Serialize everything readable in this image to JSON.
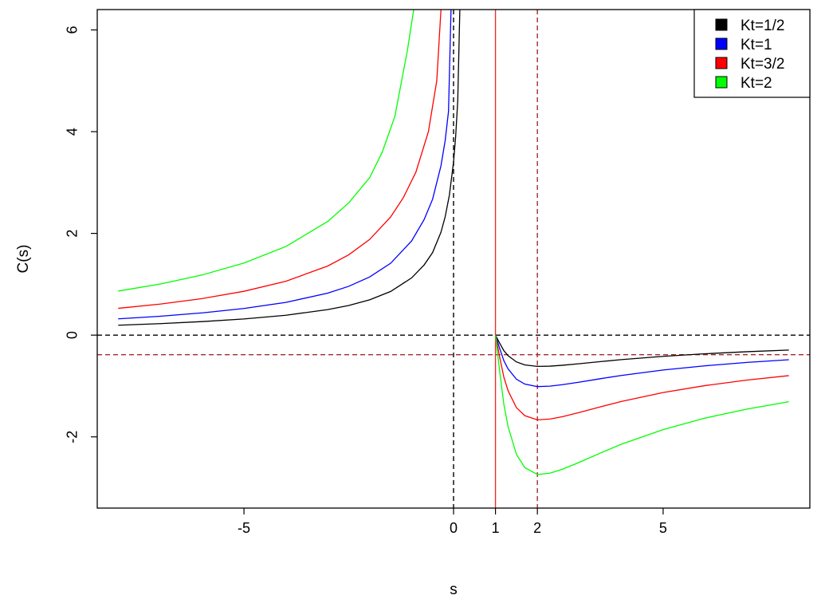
{
  "chart_data": {
    "type": "line",
    "xlabel": "s",
    "ylabel": "C(s)",
    "xlim": [
      -8.5,
      8.5
    ],
    "ylim": [
      -3.4,
      6.4
    ],
    "x_ticks": [
      -5,
      0,
      1,
      2,
      5
    ],
    "x_tick_labels": [
      "-5",
      "0",
      "1",
      "2",
      "5"
    ],
    "y_ticks": [
      -2,
      0,
      2,
      4,
      6
    ],
    "y_tick_labels": [
      "-2",
      "0",
      "2",
      "4",
      "6"
    ],
    "grid": false,
    "legend_position": "top-right",
    "reference_lines": [
      {
        "orientation": "horizontal",
        "value": 0,
        "color": "#000000",
        "style": "dashed"
      },
      {
        "orientation": "horizontal",
        "value": -0.385,
        "color": "#a52a2a",
        "style": "dashed"
      },
      {
        "orientation": "vertical",
        "value": 0,
        "color": "#000000",
        "style": "dashed"
      },
      {
        "orientation": "vertical",
        "value": 1,
        "color": "#e8322f",
        "style": "solid"
      },
      {
        "orientation": "vertical",
        "value": 2,
        "color": "#a52a2a",
        "style": "dashed"
      }
    ],
    "series": [
      {
        "name": "Kt=1/2",
        "color": "#000000",
        "Kt": 0.5,
        "segments": [
          {
            "x": [
              -8.0,
              -7.0,
              -6.0,
              -5.0,
              -4.0,
              -3.0,
              -2.5,
              -2.0,
              -1.5,
              -1.0,
              -0.7,
              -0.5,
              -0.3,
              -0.2,
              -0.1,
              0.0,
              0.05,
              0.1,
              0.15
            ],
            "y": [
              0.195,
              0.226,
              0.266,
              0.318,
              0.391,
              0.502,
              0.583,
              0.695,
              0.859,
              1.125,
              1.382,
              1.623,
              2.023,
              2.325,
              2.749,
              3.4,
              3.9,
              4.6,
              6.4
            ]
          },
          {
            "x": [
              1.0,
              1.1,
              1.2,
              1.3,
              1.5,
              1.7,
              2.0,
              2.3,
              2.6,
              3.0,
              3.5,
              4.0,
              5.0,
              6.0,
              7.0,
              8.0
            ],
            "y": [
              0.0,
              -0.158,
              -0.305,
              -0.403,
              -0.526,
              -0.585,
              -0.615,
              -0.61,
              -0.592,
              -0.562,
              -0.521,
              -0.482,
              -0.417,
              -0.366,
              -0.326,
              -0.294
            ]
          }
        ]
      },
      {
        "name": "Kt=1",
        "color": "#0000ff",
        "Kt": 1,
        "segments": [
          {
            "x": [
              -8.0,
              -7.0,
              -6.0,
              -5.0,
              -4.0,
              -3.0,
              -2.5,
              -2.0,
              -1.5,
              -1.0,
              -0.7,
              -0.5,
              -0.3,
              -0.2,
              -0.12,
              -0.06
            ],
            "y": [
              0.32,
              0.371,
              0.437,
              0.524,
              0.644,
              0.826,
              0.96,
              1.144,
              1.413,
              1.851,
              2.275,
              2.671,
              3.329,
              3.823,
              4.4,
              6.4
            ]
          },
          {
            "x": [
              1.0,
              1.1,
              1.2,
              1.3,
              1.5,
              1.7,
              2.0,
              2.3,
              2.6,
              3.0,
              3.5,
              4.0,
              5.0,
              6.0,
              7.0,
              8.0
            ],
            "y": [
              0.0,
              -0.26,
              -0.502,
              -0.663,
              -0.866,
              -0.962,
              -1.012,
              -1.003,
              -0.974,
              -0.924,
              -0.857,
              -0.793,
              -0.686,
              -0.603,
              -0.537,
              -0.484
            ]
          }
        ]
      },
      {
        "name": "Kt=3/2",
        "color": "#ff0000",
        "Kt": 1.5,
        "segments": [
          {
            "x": [
              -8.0,
              -7.0,
              -6.0,
              -5.0,
              -4.0,
              -3.0,
              -2.5,
              -2.0,
              -1.5,
              -1.2,
              -0.9,
              -0.6,
              -0.4,
              -0.3
            ],
            "y": [
              0.527,
              0.61,
              0.718,
              0.862,
              1.059,
              1.359,
              1.58,
              1.882,
              2.324,
              2.7,
              3.2,
              4.0,
              5.0,
              6.4
            ]
          },
          {
            "x": [
              1.0,
              1.1,
              1.2,
              1.3,
              1.5,
              1.7,
              2.0,
              2.3,
              2.6,
              3.0,
              3.5,
              4.0,
              5.0,
              6.0,
              7.0,
              8.0
            ],
            "y": [
              0.0,
              -0.428,
              -0.826,
              -1.091,
              -1.425,
              -1.583,
              -1.665,
              -1.65,
              -1.602,
              -1.52,
              -1.41,
              -1.305,
              -1.129,
              -0.992,
              -0.884,
              -0.796
            ]
          }
        ]
      },
      {
        "name": "Kt=2",
        "color": "#00ff00",
        "Kt": 2,
        "segments": [
          {
            "x": [
              -8.0,
              -7.0,
              -6.0,
              -5.0,
              -4.0,
              -3.0,
              -2.5,
              -2.0,
              -1.7,
              -1.4,
              -1.1,
              -0.95
            ],
            "y": [
              0.866,
              1.004,
              1.182,
              1.418,
              1.742,
              2.236,
              2.6,
              3.097,
              3.6,
              4.3,
              5.6,
              6.4
            ]
          },
          {
            "x": [
              1.0,
              1.1,
              1.2,
              1.3,
              1.5,
              1.7,
              2.0,
              2.3,
              2.6,
              3.0,
              3.5,
              4.0,
              5.0,
              6.0,
              7.0,
              8.0
            ],
            "y": [
              0.0,
              -0.704,
              -1.358,
              -1.795,
              -2.344,
              -2.604,
              -2.739,
              -2.714,
              -2.635,
              -2.5,
              -2.319,
              -2.146,
              -1.857,
              -1.631,
              -1.454,
              -1.309
            ]
          }
        ]
      }
    ]
  }
}
